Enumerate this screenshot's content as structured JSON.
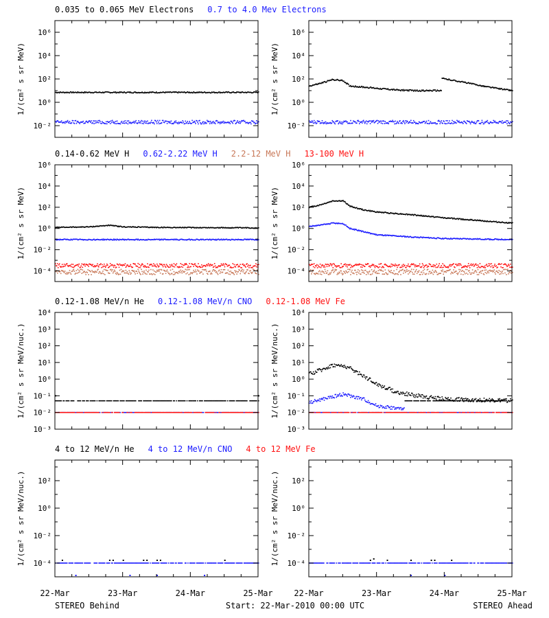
{
  "colors": {
    "black": "#000000",
    "blue": "#1a1aff",
    "tan": "#c87858",
    "red": "#ff1010"
  },
  "figure": {
    "footer": {
      "left": "STEREO Behind",
      "center": "Start: 22-Mar-2010 00:00 UTC",
      "right": "STEREO Ahead"
    },
    "x_tick_labels": [
      "22-Mar",
      "23-Mar",
      "24-Mar",
      "25-Mar"
    ]
  },
  "chart_data": [
    {
      "type": "scatter",
      "row": 0,
      "col": 0,
      "ylog": true,
      "ylim_exp": [
        -3,
        7
      ],
      "ylabel": "1/(cm² s sr MeV)",
      "yticks_exp": [
        -2,
        0,
        2,
        4,
        6
      ],
      "xlim": [
        "22-Mar",
        "25-Mar"
      ],
      "legend": [
        {
          "text": "0.035 to 0.065 MeV Electrons",
          "color": "black"
        },
        {
          "text": "0.7 to 4.0 Mev Electrons",
          "color": "blue"
        }
      ],
      "series": [
        {
          "color": "black",
          "x_days": [
            0,
            3
          ],
          "log10_y": [
            0.85,
            0.85
          ],
          "scatter": 0.05
        },
        {
          "color": "blue",
          "x_days": [
            0,
            3
          ],
          "log10_y": [
            -1.7,
            -1.7
          ],
          "scatter": 0.15
        }
      ]
    },
    {
      "type": "scatter",
      "row": 0,
      "col": 1,
      "ylog": true,
      "ylim_exp": [
        -3,
        7
      ],
      "ylabel": "1/(cm² s sr MeV)",
      "yticks_exp": [
        -2,
        0,
        2,
        4,
        6
      ],
      "xlim": [
        "22-Mar",
        "25-Mar"
      ],
      "legend": [],
      "series": [
        {
          "color": "black",
          "x_days": [
            0,
            0.15,
            0.35,
            0.5,
            0.6,
            0.8,
            1.0,
            1.3,
            1.6,
            1.95
          ],
          "log10_y": [
            1.4,
            1.6,
            1.95,
            1.85,
            1.4,
            1.3,
            1.2,
            1.05,
            1.0,
            1.0
          ],
          "scatter": 0.06
        },
        {
          "color": "black",
          "x_days": [
            1.96,
            2.3,
            2.6,
            3.0
          ],
          "log10_y": [
            2.05,
            1.7,
            1.35,
            1.0
          ],
          "scatter": 0.05
        },
        {
          "color": "blue",
          "x_days": [
            0,
            3
          ],
          "log10_y": [
            -1.7,
            -1.7
          ],
          "scatter": 0.15
        }
      ]
    },
    {
      "type": "scatter",
      "row": 1,
      "col": 0,
      "ylog": true,
      "ylim_exp": [
        -5,
        6
      ],
      "ylabel": "1/(cm² s sr MeV)",
      "yticks_exp": [
        -4,
        -2,
        0,
        2,
        4,
        6
      ],
      "xlim": [
        "22-Mar",
        "25-Mar"
      ],
      "legend": [
        {
          "text": "0.14-0.62 MeV H",
          "color": "black"
        },
        {
          "text": "0.62-2.22 MeV H",
          "color": "blue"
        },
        {
          "text": "2.2-12 MeV H",
          "color": "tan"
        },
        {
          "text": "13-100 MeV H",
          "color": "red"
        }
      ],
      "series": [
        {
          "color": "black",
          "x_days": [
            0,
            0.5,
            0.8,
            1.0,
            1.5,
            3.0
          ],
          "log10_y": [
            0.1,
            0.15,
            0.3,
            0.15,
            0.1,
            0.05
          ],
          "scatter": 0.04
        },
        {
          "color": "blue",
          "x_days": [
            0,
            3
          ],
          "log10_y": [
            -1.05,
            -1.05
          ],
          "scatter": 0.05
        },
        {
          "color": "tan",
          "x_days": [
            0,
            3
          ],
          "log10_y": [
            -4.1,
            -4.1
          ],
          "scatter": 0.25
        },
        {
          "color": "red",
          "x_days": [
            0,
            3
          ],
          "log10_y": [
            -3.5,
            -3.5
          ],
          "scatter": 0.2
        }
      ]
    },
    {
      "type": "scatter",
      "row": 1,
      "col": 1,
      "ylog": true,
      "ylim_exp": [
        -5,
        6
      ],
      "ylabel": "1/(cm² s sr MeV)",
      "yticks_exp": [
        -4,
        -2,
        0,
        2,
        4,
        6
      ],
      "xlim": [
        "22-Mar",
        "25-Mar"
      ],
      "legend": [],
      "series": [
        {
          "color": "black",
          "x_days": [
            0,
            0.15,
            0.35,
            0.5,
            0.6,
            0.8,
            1.0,
            1.5,
            2.0,
            2.5,
            3.0
          ],
          "log10_y": [
            2.0,
            2.2,
            2.6,
            2.6,
            2.1,
            1.75,
            1.55,
            1.3,
            1.0,
            0.75,
            0.5
          ],
          "scatter": 0.05
        },
        {
          "color": "blue",
          "x_days": [
            0,
            0.15,
            0.35,
            0.5,
            0.6,
            0.8,
            1.0,
            1.5,
            2.0,
            3.0
          ],
          "log10_y": [
            0.2,
            0.3,
            0.5,
            0.45,
            0.0,
            -0.3,
            -0.6,
            -0.8,
            -0.95,
            -1.05
          ],
          "scatter": 0.05
        },
        {
          "color": "tan",
          "x_days": [
            0,
            3
          ],
          "log10_y": [
            -4.1,
            -4.1
          ],
          "scatter": 0.25
        },
        {
          "color": "red",
          "x_days": [
            0,
            3
          ],
          "log10_y": [
            -3.5,
            -3.5
          ],
          "scatter": 0.2
        }
      ]
    },
    {
      "type": "scatter",
      "row": 2,
      "col": 0,
      "ylog": true,
      "ylim_exp": [
        -3,
        4
      ],
      "ylabel": "1/(cm² s sr MeV/nuc.)",
      "yticks_exp": [
        -3,
        -2,
        -1,
        0,
        1,
        2,
        3,
        4
      ],
      "xlim": [
        "22-Mar",
        "25-Mar"
      ],
      "legend": [
        {
          "text": "0.12-1.08 MeV/n He",
          "color": "black"
        },
        {
          "text": "0.12-1.08 MeV/n CNO",
          "color": "blue"
        },
        {
          "text": "0.12-1.08 MeV Fe",
          "color": "red"
        }
      ],
      "series": [
        {
          "color": "black",
          "x_days": [
            0,
            3
          ],
          "log10_y": [
            -1.3,
            -1.3
          ],
          "scatter": 0
        },
        {
          "color": "black",
          "x_days": [
            0,
            3
          ],
          "log10_y": [
            -1.0,
            -1.0
          ],
          "scatter": 0.12,
          "sparse": true
        },
        {
          "color": "blue",
          "x_days": [
            0,
            3
          ],
          "log10_y": [
            -2.0,
            -2.0
          ],
          "scatter": 0
        },
        {
          "color": "red",
          "x_days": [
            0,
            3
          ],
          "log10_y": [
            -2.0,
            -2.0
          ],
          "scatter": 0
        }
      ]
    },
    {
      "type": "scatter",
      "row": 2,
      "col": 1,
      "ylog": true,
      "ylim_exp": [
        -3,
        4
      ],
      "ylabel": "1/(cm² s sr MeV/nuc.)",
      "yticks_exp": [
        -3,
        -2,
        -1,
        0,
        1,
        2,
        3,
        4
      ],
      "xlim": [
        "22-Mar",
        "25-Mar"
      ],
      "legend": [],
      "series": [
        {
          "color": "black",
          "x_days": [
            0,
            0.2,
            0.35,
            0.55,
            0.8,
            1.0,
            1.3,
            1.6,
            2.0,
            3.0
          ],
          "log10_y": [
            0.3,
            0.6,
            0.85,
            0.75,
            0.2,
            -0.3,
            -0.8,
            -1.0,
            -1.2,
            -1.3
          ],
          "scatter": 0.12
        },
        {
          "color": "black",
          "x_days": [
            1.4,
            3.0
          ],
          "log10_y": [
            -1.3,
            -1.3
          ],
          "scatter": 0
        },
        {
          "color": "blue",
          "x_days": [
            0,
            0.2,
            0.5,
            0.8,
            1.0,
            1.4
          ],
          "log10_y": [
            -1.4,
            -1.2,
            -0.9,
            -1.2,
            -1.6,
            -1.8
          ],
          "scatter": 0.1
        },
        {
          "color": "blue",
          "x_days": [
            0,
            3
          ],
          "log10_y": [
            -2.0,
            -2.0
          ],
          "scatter": 0
        },
        {
          "color": "red",
          "x_days": [
            0,
            3
          ],
          "log10_y": [
            -2.0,
            -2.0
          ],
          "scatter": 0
        }
      ]
    },
    {
      "type": "scatter",
      "row": 3,
      "col": 0,
      "ylog": true,
      "ylim_exp": [
        -5,
        3.5
      ],
      "ylabel": "1/(cm² s sr MeV/nuc.)",
      "yticks_exp": [
        -4,
        -2,
        0,
        2
      ],
      "xlim": [
        "22-Mar",
        "25-Mar"
      ],
      "legend": [
        {
          "text": "4 to 12 MeV/n He",
          "color": "black"
        },
        {
          "text": "4 to 12 MeV/n CNO",
          "color": "blue"
        },
        {
          "text": "4 to 12 MeV Fe",
          "color": "red"
        }
      ],
      "series": [
        {
          "color": "blue",
          "x_days": [
            0,
            3
          ],
          "log10_y": [
            -4.0,
            -4.0
          ],
          "scatter": 0
        },
        {
          "color": "black",
          "x_days": [
            0.1,
            0.8,
            0.85,
            1.0,
            1.3,
            1.35,
            1.5,
            1.55,
            2.5
          ],
          "log10_y": [
            -3.8,
            -3.8,
            -3.8,
            -3.8,
            -3.8,
            -3.8,
            -3.8,
            -3.8,
            -3.8
          ],
          "scatter": 0,
          "sparse": true
        },
        {
          "color": "blue",
          "x_days": [
            0.3,
            1.1,
            1.5,
            2.2
          ],
          "log10_y": [
            -4.9,
            -4.9,
            -4.9,
            -4.9
          ],
          "scatter": 0,
          "sparse": true
        }
      ]
    },
    {
      "type": "scatter",
      "row": 3,
      "col": 1,
      "ylog": true,
      "ylim_exp": [
        -5,
        3.5
      ],
      "ylabel": "1/(cm² s sr MeV/nuc.)",
      "yticks_exp": [
        -4,
        -2,
        0,
        2
      ],
      "xlim": [
        "22-Mar",
        "25-Mar"
      ],
      "legend": [],
      "series": [
        {
          "color": "blue",
          "x_days": [
            0,
            3
          ],
          "log10_y": [
            -4.0,
            -4.0
          ],
          "scatter": 0
        },
        {
          "color": "black",
          "x_days": [
            0.9,
            0.95,
            1.15,
            1.5,
            1.8,
            1.85,
            2.1
          ],
          "log10_y": [
            -3.8,
            -3.7,
            -3.8,
            -3.8,
            -3.8,
            -3.8,
            -3.8
          ],
          "scatter": 0,
          "sparse": true
        },
        {
          "color": "blue",
          "x_days": [
            1.5,
            2.0
          ],
          "log10_y": [
            -4.9,
            -4.9
          ],
          "scatter": 0,
          "sparse": true
        }
      ]
    }
  ]
}
